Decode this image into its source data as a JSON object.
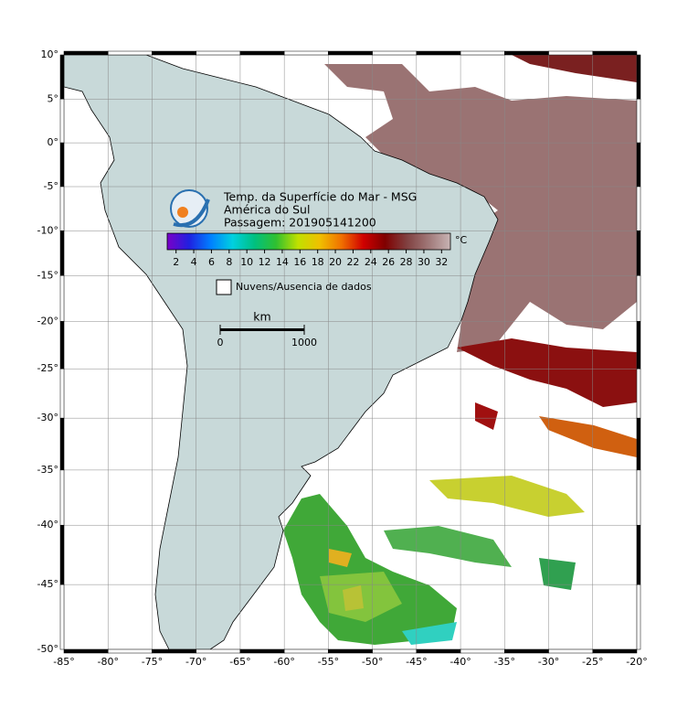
{
  "map": {
    "title": "Temp. da Superfície do Mar - MSG",
    "subtitle": "América do Sul",
    "pass": "Passagem: 201905141200",
    "xlim": [
      -85,
      -20
    ],
    "ylim": [
      -50,
      10
    ],
    "lon_ticks": [
      {
        "value": -85,
        "label": "-85°"
      },
      {
        "value": -80,
        "label": "-80°"
      },
      {
        "value": -75,
        "label": "-75°"
      },
      {
        "value": -70,
        "label": "-70°"
      },
      {
        "value": -65,
        "label": "-65°"
      },
      {
        "value": -60,
        "label": "-60°"
      },
      {
        "value": -55,
        "label": "-55°"
      },
      {
        "value": -50,
        "label": "-50°"
      },
      {
        "value": -45,
        "label": "-45°"
      },
      {
        "value": -40,
        "label": "-40°"
      },
      {
        "value": -35,
        "label": "-35°"
      },
      {
        "value": -30,
        "label": "-30°"
      },
      {
        "value": -25,
        "label": "-25°"
      },
      {
        "value": -20,
        "label": "-20°"
      }
    ],
    "lat_ticks": [
      {
        "value": 10,
        "label": "10°"
      },
      {
        "value": 5,
        "label": "5°"
      },
      {
        "value": 0,
        "label": "0°"
      },
      {
        "value": -5,
        "label": "-5°"
      },
      {
        "value": -10,
        "label": "-10°"
      },
      {
        "value": -15,
        "label": "-15°"
      },
      {
        "value": -20,
        "label": "-20°"
      },
      {
        "value": -25,
        "label": "-25°"
      },
      {
        "value": -30,
        "label": "-30°"
      },
      {
        "value": -35,
        "label": "-35°"
      },
      {
        "value": -40,
        "label": "-40°"
      },
      {
        "value": -45,
        "label": "-45°"
      },
      {
        "value": -50,
        "label": "-50°"
      }
    ],
    "colorbar": {
      "unit": "°C",
      "range": [
        1,
        33
      ],
      "ticks": [
        2,
        4,
        6,
        8,
        10,
        12,
        14,
        16,
        18,
        20,
        22,
        24,
        26,
        28,
        30,
        32
      ],
      "colors": [
        "#7a00c8",
        "#2020e0",
        "#0080ff",
        "#00d0e0",
        "#00c080",
        "#30c030",
        "#c0e000",
        "#f0c000",
        "#f07000",
        "#d00000",
        "#800000",
        "#804040",
        "#a07878",
        "#c8b4b4"
      ]
    },
    "legend": "Nuvens/Ausencia de dados",
    "scale_bar": {
      "unit": "km",
      "ticks": [
        0,
        1000
      ]
    }
  }
}
